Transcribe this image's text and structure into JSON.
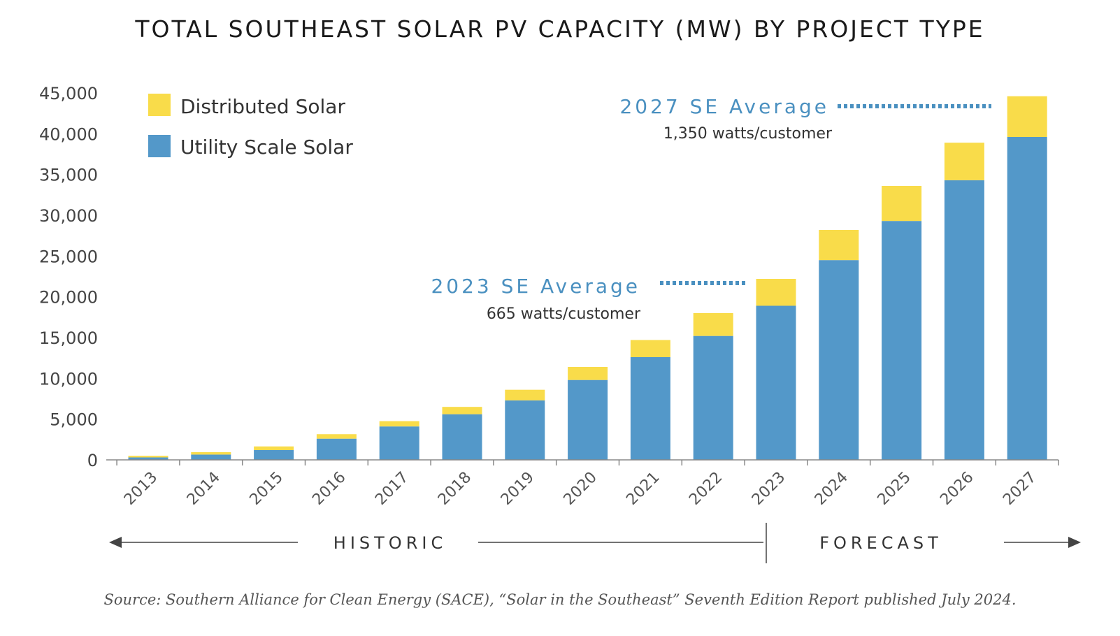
{
  "chart_data": {
    "type": "bar",
    "stacked": true,
    "title": "TOTAL SOUTHEAST SOLAR PV CAPACITY (MW) BY PROJECT TYPE",
    "xlabel": "",
    "ylabel": "",
    "ylim": [
      0,
      45000
    ],
    "yticks": [
      "0",
      "5,000",
      "10,000",
      "15,000",
      "20,000",
      "25,000",
      "30,000",
      "35,000",
      "40,000",
      "45,000"
    ],
    "categories": [
      "2013",
      "2014",
      "2015",
      "2016",
      "2017",
      "2018",
      "2019",
      "2020",
      "2021",
      "2022",
      "2023",
      "2024",
      "2025",
      "2026",
      "2027"
    ],
    "series": [
      {
        "name": "Utility Scale Solar",
        "color": "#5398c9",
        "values": [
          300,
          650,
          1200,
          2600,
          4100,
          5600,
          7300,
          9800,
          12600,
          15200,
          18900,
          24500,
          29300,
          34300,
          39600
        ]
      },
      {
        "name": "Distributed Solar",
        "color": "#f9dc4a",
        "values": [
          200,
          300,
          450,
          550,
          650,
          900,
          1300,
          1600,
          2100,
          2800,
          3300,
          3700,
          4300,
          4600,
          5000
        ]
      }
    ],
    "legend": [
      "Distributed Solar",
      "Utility Scale Solar"
    ],
    "legend_position": "top-left",
    "grid": false,
    "annotations": [
      {
        "heading": "2023 SE Average",
        "detail": "665 watts/customer",
        "target": "2023"
      },
      {
        "heading": "2027 SE Average",
        "detail": "1,350 watts/customer",
        "target": "2027"
      }
    ],
    "periods": {
      "historic": "HISTORIC",
      "forecast": "FORECAST"
    }
  },
  "source": "Source: Southern Alliance for Clean Energy (SACE), “Solar in the Southeast” Seventh Edition Report published July 2024."
}
